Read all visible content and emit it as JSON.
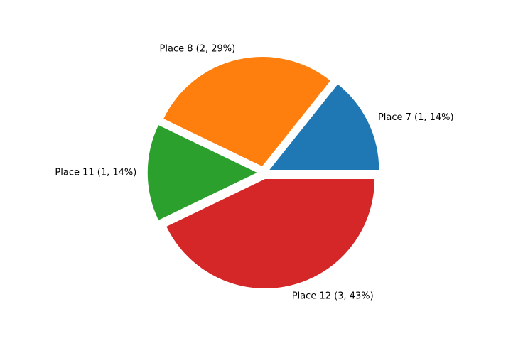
{
  "chart_data": {
    "type": "pie",
    "categories": [
      "Place 7",
      "Place 8",
      "Place 11",
      "Place 12"
    ],
    "values": [
      1,
      2,
      1,
      3
    ],
    "percentages": [
      14,
      29,
      14,
      43
    ],
    "labels": [
      "Place 7 (1, 14%)",
      "Place 8 (2, 29%)",
      "Place 11 (1, 14%)",
      "Place 12 (3, 43%)"
    ],
    "colors": [
      "#1f77b4",
      "#ff7f0e",
      "#2ca02c",
      "#d62728"
    ],
    "start_angle_deg": 0,
    "direction": "counterclockwise",
    "exploded": true
  }
}
